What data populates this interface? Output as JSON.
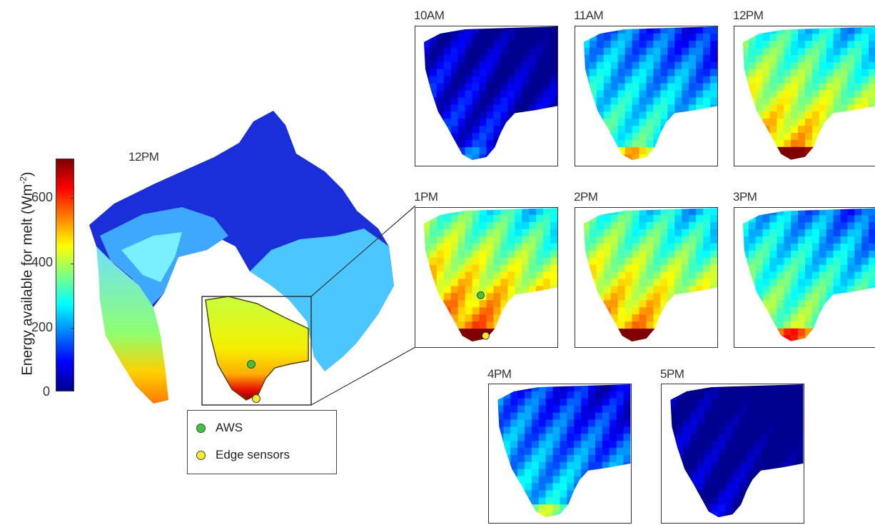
{
  "colorbar": {
    "title": "Energy available for melt (Wm",
    "title_sup": "-2",
    "title_close": ")",
    "ticks": [
      "600",
      "400",
      "200",
      "0"
    ],
    "colors": [
      "#00008f",
      "#0000ff",
      "#0080ff",
      "#00ffff",
      "#80ff80",
      "#ffff00",
      "#ff8000",
      "#ff0000",
      "#800000"
    ]
  },
  "main_map": {
    "label": "12PM"
  },
  "legend": {
    "items": [
      {
        "label": "AWS",
        "color": "#3cc63c"
      },
      {
        "label": "Edge sensors",
        "color": "#f2ef2a"
      }
    ]
  },
  "panels": [
    {
      "time": "10AM",
      "level": 0.12
    },
    {
      "time": "11AM",
      "level": 0.38
    },
    {
      "time": "12PM",
      "level": 0.6
    },
    {
      "time": "1PM",
      "level": 0.66
    },
    {
      "time": "2PM",
      "level": 0.62
    },
    {
      "time": "3PM",
      "level": 0.46
    },
    {
      "time": "4PM",
      "level": 0.3
    },
    {
      "time": "5PM",
      "level": 0.04
    }
  ]
}
